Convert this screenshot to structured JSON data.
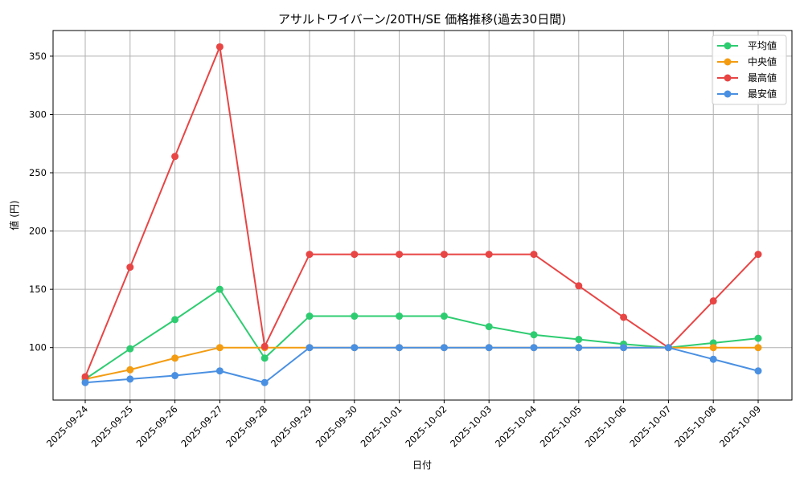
{
  "chart_data": {
    "type": "line",
    "title": "アサルトワイバーン/20TH/SE 価格推移(過去30日間)",
    "xlabel": "日付",
    "ylabel": "値 (円)",
    "categories": [
      "2025-09-24",
      "2025-09-25",
      "2025-09-26",
      "2025-09-27",
      "2025-09-28",
      "2025-09-29",
      "2025-09-30",
      "2025-10-01",
      "2025-10-02",
      "2025-10-03",
      "2025-10-04",
      "2025-10-05",
      "2025-10-06",
      "2025-10-07",
      "2025-10-08",
      "2025-10-09"
    ],
    "ylim": [
      55,
      372
    ],
    "yticks": [
      100,
      150,
      200,
      250,
      300,
      350
    ],
    "grid": true,
    "legend_position": "top-right",
    "series": [
      {
        "name": "平均値",
        "color": "#2ecc71",
        "values": [
          73,
          99,
          124,
          150,
          91,
          127,
          127,
          127,
          127,
          118,
          111,
          107,
          103,
          100,
          104,
          108
        ]
      },
      {
        "name": "中央値",
        "color": "#f39c12",
        "values": [
          73,
          81,
          91,
          100,
          100,
          100,
          100,
          100,
          100,
          100,
          100,
          100,
          100,
          100,
          100,
          100
        ]
      },
      {
        "name": "最高値",
        "color": "#e84545",
        "values": [
          75,
          169,
          264,
          358,
          101,
          180,
          180,
          180,
          180,
          180,
          180,
          153,
          126,
          100,
          140,
          180
        ]
      },
      {
        "name": "最安値",
        "color": "#4a90e2",
        "values": [
          70,
          73,
          76,
          80,
          70,
          100,
          100,
          100,
          100,
          100,
          100,
          100,
          100,
          100,
          90,
          80
        ]
      }
    ]
  }
}
